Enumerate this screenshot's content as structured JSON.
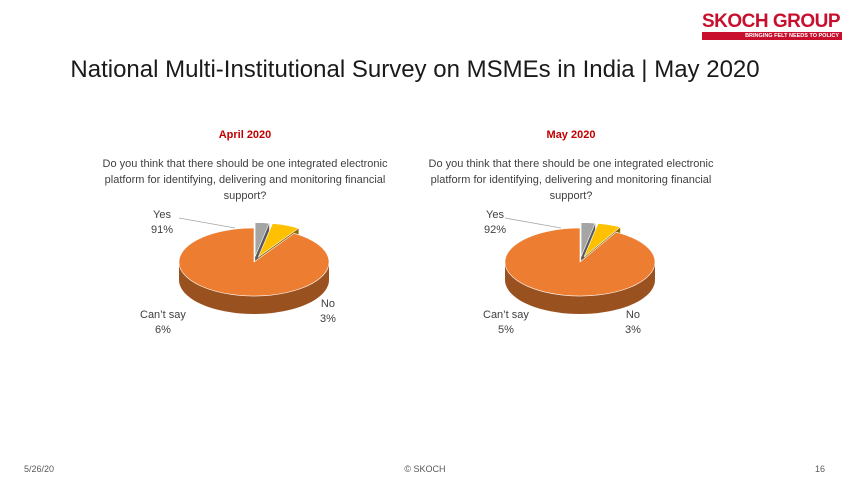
{
  "slide": {
    "title": "National Multi-Institutional Survey on MSMEs in India | May 2020",
    "footer_date": "5/26/20",
    "footer_center": "© SKOCH",
    "page_number": "16"
  },
  "logo": {
    "brand": "SKOCH GROUP",
    "tagline": "BRINGING FELT NEEDS TO POLICY"
  },
  "colors": {
    "yes": "#ED7D31",
    "cant_say": "#FFC000",
    "no": "#A5A5A5",
    "chart_title": "#C00000"
  },
  "chart_data": [
    {
      "type": "pie",
      "title": "April 2020",
      "question": "Do you think that there should be one integrated electronic platform for identifying, delivering and monitoring financial support?",
      "categories": [
        "Yes",
        "Can’t say",
        "No"
      ],
      "values": [
        91,
        6,
        3
      ],
      "data_labels": [
        "91%",
        "6%",
        "3%"
      ]
    },
    {
      "type": "pie",
      "title": "May 2020",
      "question": "Do you think that there should be one integrated electronic platform for identifying, delivering and monitoring financial support?",
      "categories": [
        "Yes",
        "Can’t say",
        "No"
      ],
      "values": [
        92,
        5,
        3
      ],
      "data_labels": [
        "92%",
        "5%",
        "3%"
      ]
    }
  ]
}
